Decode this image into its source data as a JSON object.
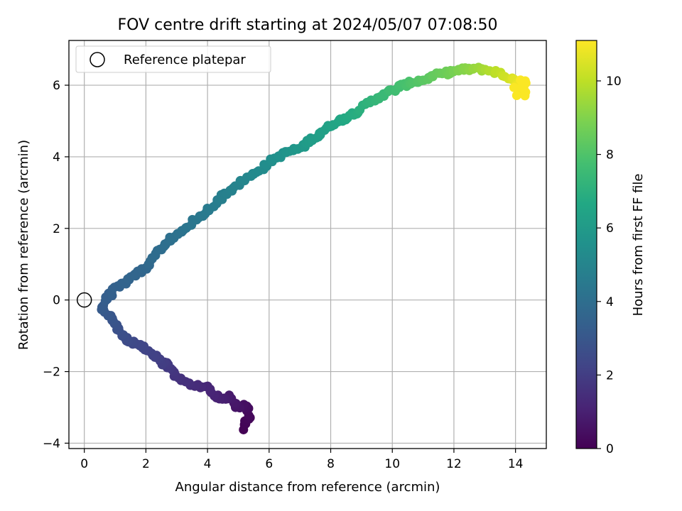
{
  "chart_data": {
    "type": "scatter",
    "title": "FOV centre drift starting at 2024/05/07 07:08:50",
    "xlabel": "Angular distance from reference (arcmin)",
    "ylabel": "Rotation from reference (arcmin)",
    "xlim": [
      -0.5,
      15.0
    ],
    "ylim": [
      -4.15,
      7.25
    ],
    "xticks": [
      0,
      2,
      4,
      6,
      8,
      10,
      12,
      14
    ],
    "yticks": [
      -4,
      -2,
      0,
      2,
      4,
      6
    ],
    "grid": true,
    "legend": {
      "position": "top-left",
      "entries": [
        "Reference platepar"
      ]
    },
    "reference_point": {
      "x": 0,
      "y": 0
    },
    "colorbar": {
      "label": "Hours from first FF file",
      "colormap": "viridis",
      "range": [
        0,
        11.1
      ],
      "ticks": [
        0,
        2,
        4,
        6,
        8,
        10
      ]
    },
    "anchors": [
      {
        "x": 5.15,
        "y": -3.6,
        "c": 0.05
      },
      {
        "x": 5.35,
        "y": -3.25,
        "c": 0.2
      },
      {
        "x": 5.25,
        "y": -2.95,
        "c": 0.4
      },
      {
        "x": 4.95,
        "y": -2.98,
        "c": 0.6
      },
      {
        "x": 4.7,
        "y": -2.7,
        "c": 0.8
      },
      {
        "x": 4.4,
        "y": -2.75,
        "c": 1.0
      },
      {
        "x": 4.0,
        "y": -2.45,
        "c": 1.2
      },
      {
        "x": 3.5,
        "y": -2.4,
        "c": 1.4
      },
      {
        "x": 3.05,
        "y": -2.2,
        "c": 1.6
      },
      {
        "x": 2.8,
        "y": -1.9,
        "c": 1.8
      },
      {
        "x": 2.55,
        "y": -1.75,
        "c": 2.0
      },
      {
        "x": 2.05,
        "y": -1.4,
        "c": 2.2
      },
      {
        "x": 1.65,
        "y": -1.2,
        "c": 2.4
      },
      {
        "x": 1.3,
        "y": -1.05,
        "c": 2.6
      },
      {
        "x": 1.05,
        "y": -0.75,
        "c": 2.8
      },
      {
        "x": 0.8,
        "y": -0.4,
        "c": 3.0
      },
      {
        "x": 0.55,
        "y": -0.25,
        "c": 3.15
      },
      {
        "x": 0.7,
        "y": 0.05,
        "c": 3.3
      },
      {
        "x": 1.0,
        "y": 0.3,
        "c": 3.45
      },
      {
        "x": 1.35,
        "y": 0.5,
        "c": 3.55
      },
      {
        "x": 2.0,
        "y": 0.9,
        "c": 3.7
      },
      {
        "x": 2.25,
        "y": 1.2,
        "c": 3.85
      },
      {
        "x": 2.6,
        "y": 1.55,
        "c": 4.0
      },
      {
        "x": 3.0,
        "y": 1.8,
        "c": 4.15
      },
      {
        "x": 3.5,
        "y": 2.15,
        "c": 4.35
      },
      {
        "x": 4.0,
        "y": 2.5,
        "c": 4.55
      },
      {
        "x": 4.5,
        "y": 2.9,
        "c": 4.75
      },
      {
        "x": 5.0,
        "y": 3.25,
        "c": 4.95
      },
      {
        "x": 5.5,
        "y": 3.5,
        "c": 5.15
      },
      {
        "x": 6.0,
        "y": 3.85,
        "c": 5.4
      },
      {
        "x": 6.5,
        "y": 4.1,
        "c": 5.65
      },
      {
        "x": 7.0,
        "y": 4.25,
        "c": 5.9
      },
      {
        "x": 7.5,
        "y": 4.55,
        "c": 6.15
      },
      {
        "x": 8.0,
        "y": 4.9,
        "c": 6.4
      },
      {
        "x": 8.5,
        "y": 5.1,
        "c": 6.7
      },
      {
        "x": 9.0,
        "y": 5.35,
        "c": 7.0
      },
      {
        "x": 9.5,
        "y": 5.65,
        "c": 7.3
      },
      {
        "x": 10.0,
        "y": 5.85,
        "c": 7.6
      },
      {
        "x": 10.5,
        "y": 6.05,
        "c": 7.9
      },
      {
        "x": 11.0,
        "y": 6.15,
        "c": 8.2
      },
      {
        "x": 11.5,
        "y": 6.3,
        "c": 8.5
      },
      {
        "x": 12.0,
        "y": 6.4,
        "c": 8.8
      },
      {
        "x": 12.5,
        "y": 6.45,
        "c": 9.2
      },
      {
        "x": 13.0,
        "y": 6.45,
        "c": 9.6
      },
      {
        "x": 13.4,
        "y": 6.35,
        "c": 10.0
      },
      {
        "x": 13.8,
        "y": 6.2,
        "c": 10.4
      },
      {
        "x": 14.05,
        "y": 6.05,
        "c": 10.8
      },
      {
        "x": 14.15,
        "y": 5.85,
        "c": 11.05
      }
    ]
  }
}
